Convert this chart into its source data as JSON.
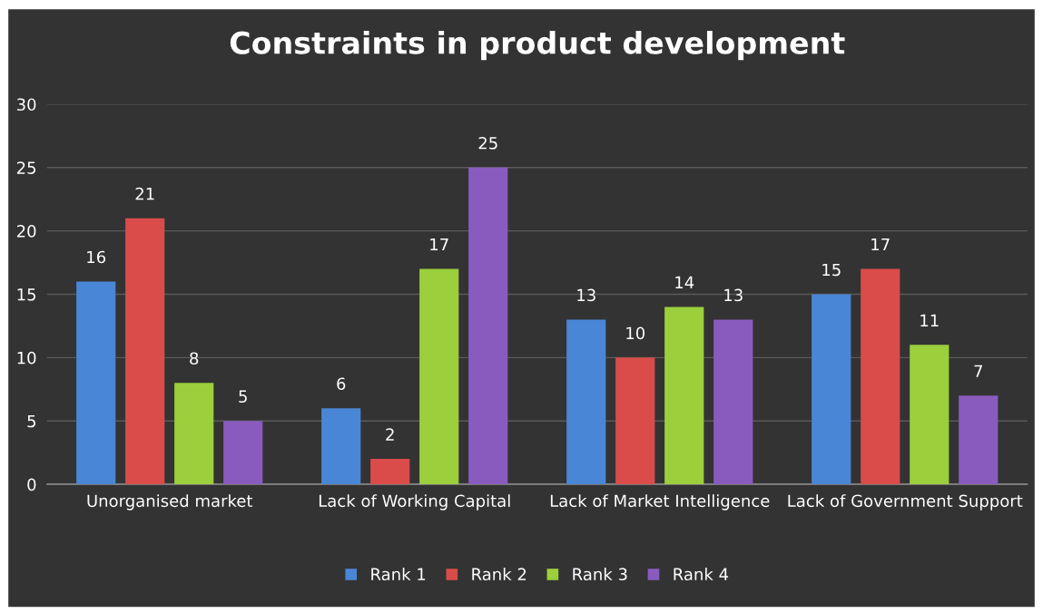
{
  "chart_data": {
    "type": "bar",
    "title": "Constraints in product development",
    "categories": [
      "Unorganised market",
      "Lack of Working Capital",
      "Lack of Market Intelligence",
      "Lack of Government Support"
    ],
    "series": [
      {
        "name": "Rank 1",
        "color": "#4a86d6",
        "values": [
          16,
          6,
          13,
          15
        ]
      },
      {
        "name": "Rank 2",
        "color": "#d94c4a",
        "values": [
          21,
          2,
          10,
          17
        ]
      },
      {
        "name": "Rank 3",
        "color": "#9bcf3c",
        "values": [
          8,
          17,
          14,
          11
        ]
      },
      {
        "name": "Rank 4",
        "color": "#8a5bbf",
        "values": [
          5,
          25,
          13,
          7
        ]
      }
    ],
    "ylim": [
      0,
      30
    ],
    "yticks": [
      0,
      5,
      10,
      15,
      20,
      25,
      30
    ],
    "grid": "y",
    "legend": "bottom",
    "data_labels": true
  }
}
